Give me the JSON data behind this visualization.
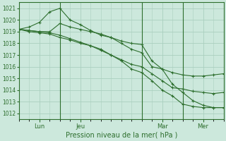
{
  "background_color": "#cce8dc",
  "grid_color": "#aacfbf",
  "line_color": "#2d6e2d",
  "title": "Pression niveau de la mer( hPa )",
  "ylim": [
    1011.5,
    1021.5
  ],
  "yticks": [
    1012,
    1013,
    1014,
    1015,
    1016,
    1017,
    1018,
    1019,
    1020,
    1021
  ],
  "xlim": [
    0,
    60
  ],
  "xlabel_tick_positions": [
    6,
    18,
    42,
    54
  ],
  "xlabel_ticks": [
    "Lun",
    "Jeu",
    "Mar",
    "Mer"
  ],
  "vline_positions": [
    12,
    36,
    48
  ],
  "line1_x": [
    0,
    3,
    6,
    9,
    12,
    15,
    18,
    21,
    24,
    27,
    30,
    33,
    36,
    39,
    42,
    45,
    48,
    51,
    54,
    57,
    60
  ],
  "line1_y": [
    1019.2,
    1019.1,
    1019.0,
    1019.0,
    1019.7,
    1019.4,
    1019.2,
    1019.0,
    1018.8,
    1018.5,
    1018.2,
    1018.0,
    1017.9,
    1016.5,
    1015.8,
    1015.5,
    1015.3,
    1015.2,
    1015.2,
    1015.3,
    1015.4
  ],
  "line2_x": [
    0,
    3,
    6,
    9,
    12,
    15,
    18,
    21,
    24,
    27,
    30,
    33,
    36,
    39,
    42,
    45,
    48,
    51,
    54,
    57,
    60
  ],
  "line2_y": [
    1019.2,
    1019.4,
    1019.8,
    1020.7,
    1021.0,
    1020.0,
    1019.6,
    1019.1,
    1018.7,
    1018.5,
    1018.0,
    1017.5,
    1017.2,
    1016.0,
    1015.8,
    1014.5,
    1013.8,
    1013.1,
    1012.7,
    1012.5,
    1012.5
  ],
  "line3_x": [
    0,
    3,
    6,
    9,
    12,
    15,
    18,
    21,
    24,
    27,
    30,
    33,
    36,
    39,
    42,
    45,
    48,
    51,
    54,
    57,
    60
  ],
  "line3_y": [
    1019.2,
    1019.0,
    1018.9,
    1018.8,
    1018.5,
    1018.3,
    1018.0,
    1017.8,
    1017.5,
    1017.0,
    1016.5,
    1015.8,
    1015.5,
    1014.8,
    1014.0,
    1013.5,
    1012.8,
    1012.6,
    1012.5,
    1012.5,
    1012.5
  ],
  "line4_x": [
    0,
    3,
    6,
    9,
    12,
    15,
    18,
    21,
    24,
    27,
    30,
    33,
    36,
    39,
    42,
    45,
    48,
    51,
    54,
    57,
    60
  ],
  "line4_y": [
    1019.2,
    1019.1,
    1019.0,
    1018.9,
    1018.7,
    1018.4,
    1018.1,
    1017.8,
    1017.4,
    1017.0,
    1016.6,
    1016.2,
    1016.0,
    1015.4,
    1014.8,
    1014.2,
    1014.1,
    1013.9,
    1013.8,
    1013.7,
    1013.8
  ]
}
